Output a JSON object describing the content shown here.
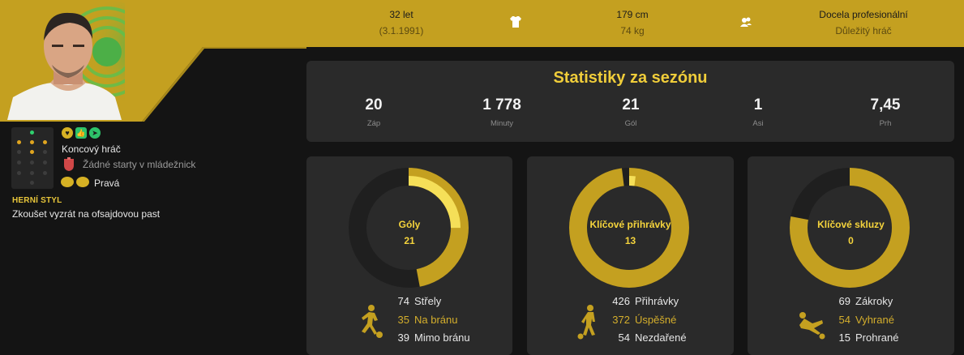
{
  "header": {
    "age": "32 let",
    "birth_date": "(3.1.1991)",
    "height": "179 cm",
    "weight": "74 kg",
    "status": "Docela profesionální",
    "role": "Důležitý hráč",
    "icons": [
      "shirt-icon",
      "people-icon"
    ]
  },
  "player": {
    "position": "Koncový hráč",
    "youth": "Žádné starty v mládežnick",
    "foot": "Pravá",
    "style_label": "HERNÍ STYL",
    "style": "Zkoušet vyzrát na ofsajdovou past",
    "trait_icons": [
      "heart-badge-icon",
      "thumbs-up-icon",
      "send-icon"
    ]
  },
  "season": {
    "title": "Statistiky za sezónu",
    "stats": [
      {
        "value": "20",
        "label": "Záp"
      },
      {
        "value": "1 778",
        "label": "Minuty"
      },
      {
        "value": "21",
        "label": "Gól"
      },
      {
        "value": "1",
        "label": "Asi"
      },
      {
        "value": "7,45",
        "label": "Prh"
      }
    ]
  },
  "cards": [
    {
      "title": "Góly",
      "value": "21",
      "total_fraction": 0.47,
      "highlight_fraction": 0.25,
      "rows": [
        {
          "n": "74",
          "t": "Střely"
        },
        {
          "n": "35",
          "t": "Na bránu"
        },
        {
          "n": "39",
          "t": "Mimo bránu"
        }
      ]
    },
    {
      "title": "Klíčové přihrávky",
      "value": "13",
      "total_fraction": 0.98,
      "highlight_fraction": 0.02,
      "rows": [
        {
          "n": "426",
          "t": "Přihrávky"
        },
        {
          "n": "372",
          "t": "Úspěšné"
        },
        {
          "n": "54",
          "t": "Nezdařené"
        }
      ]
    },
    {
      "title": "Klíčové skluzy",
      "value": "0",
      "total_fraction": 0.78,
      "highlight_fraction": 0,
      "rows": [
        {
          "n": "69",
          "t": "Zákroky"
        },
        {
          "n": "54",
          "t": "Vyhrané"
        },
        {
          "n": "15",
          "t": "Prohrané"
        }
      ]
    }
  ],
  "colors": {
    "gold": "#c4a020",
    "highlight": "#f5df58",
    "ring_bg": "#1f1f1f"
  }
}
